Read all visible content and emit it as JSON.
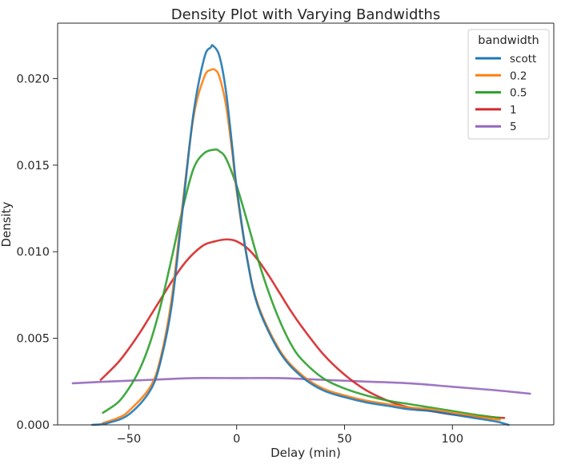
{
  "chart_data": {
    "type": "line",
    "title": "Density Plot with Varying Bandwidths",
    "xlabel": "Delay (min)",
    "ylabel": "Density",
    "xlim": [
      -83,
      147
    ],
    "ylim": [
      0,
      0.0232
    ],
    "xticks": [
      -50,
      0,
      50,
      100
    ],
    "yticks": [
      0.0,
      0.005,
      0.01,
      0.015,
      0.02
    ],
    "xtick_labels": [
      "−50",
      "0",
      "50",
      "100"
    ],
    "ytick_labels": [
      "0.000",
      "0.005",
      "0.010",
      "0.015",
      "0.020"
    ],
    "grid": false,
    "legend": {
      "title": "bandwidth",
      "position": "top-right"
    },
    "series": [
      {
        "name": "scott",
        "color": "#1f77b4",
        "x": [
          -67,
          -60,
          -50,
          -40,
          -35,
          -30,
          -25,
          -20,
          -15,
          -12,
          -11,
          -8,
          -5,
          -2,
          0,
          5,
          10,
          20,
          30,
          40,
          50,
          60,
          70,
          80,
          90,
          100,
          110,
          120,
          126
        ],
        "y": [
          0.0,
          0.0001,
          0.0006,
          0.002,
          0.0038,
          0.007,
          0.0125,
          0.018,
          0.0212,
          0.0218,
          0.0219,
          0.0213,
          0.0193,
          0.016,
          0.0137,
          0.0095,
          0.0068,
          0.0042,
          0.0028,
          0.002,
          0.0016,
          0.0013,
          0.0011,
          0.0009,
          0.0008,
          0.0006,
          0.0004,
          0.0002,
          0.0
        ]
      },
      {
        "name": "0.2",
        "color": "#ff7f0e",
        "x": [
          -62,
          -55,
          -50,
          -40,
          -35,
          -30,
          -25,
          -20,
          -15,
          -12,
          -10,
          -8,
          -5,
          -2,
          0,
          5,
          10,
          20,
          30,
          40,
          50,
          60,
          70,
          80,
          90,
          100,
          110,
          122
        ],
        "y": [
          0.0001,
          0.0004,
          0.0008,
          0.0022,
          0.004,
          0.0074,
          0.0128,
          0.0178,
          0.0201,
          0.0205,
          0.0205,
          0.0201,
          0.0185,
          0.0157,
          0.0135,
          0.0095,
          0.0069,
          0.0043,
          0.0029,
          0.0021,
          0.0017,
          0.0014,
          0.0012,
          0.001,
          0.0009,
          0.0007,
          0.0005,
          0.0003
        ]
      },
      {
        "name": "0.5",
        "color": "#2ca02c",
        "x": [
          -62,
          -55,
          -50,
          -45,
          -40,
          -35,
          -30,
          -25,
          -20,
          -15,
          -10,
          -8,
          -5,
          0,
          5,
          10,
          15,
          20,
          25,
          30,
          40,
          50,
          60,
          70,
          80,
          90,
          100,
          110,
          122
        ],
        "y": [
          0.0007,
          0.0013,
          0.0021,
          0.0032,
          0.0048,
          0.007,
          0.0097,
          0.0125,
          0.0148,
          0.0157,
          0.0159,
          0.0158,
          0.0154,
          0.0138,
          0.0117,
          0.0095,
          0.0076,
          0.006,
          0.0047,
          0.0038,
          0.0027,
          0.0021,
          0.0017,
          0.0014,
          0.0012,
          0.001,
          0.0008,
          0.0006,
          0.0004
        ]
      },
      {
        "name": "1",
        "color": "#d62728",
        "x": [
          -63,
          -55,
          -50,
          -45,
          -40,
          -35,
          -30,
          -25,
          -20,
          -15,
          -10,
          -6,
          -3,
          0,
          5,
          10,
          15,
          20,
          25,
          30,
          40,
          50,
          60,
          70,
          80,
          90,
          100,
          110,
          124
        ],
        "y": [
          0.0026,
          0.0036,
          0.0044,
          0.0053,
          0.0063,
          0.0073,
          0.0083,
          0.0092,
          0.0099,
          0.0104,
          0.0106,
          0.0107,
          0.0107,
          0.0106,
          0.0102,
          0.0095,
          0.0086,
          0.0076,
          0.0066,
          0.0057,
          0.0041,
          0.0029,
          0.002,
          0.0014,
          0.001,
          0.0008,
          0.0006,
          0.0005,
          0.0004
        ]
      },
      {
        "name": "5",
        "color": "#9467bd",
        "x": [
          -76,
          -60,
          -40,
          -20,
          0,
          20,
          40,
          60,
          80,
          100,
          120,
          136
        ],
        "y": [
          0.0024,
          0.0025,
          0.0026,
          0.0027,
          0.0027,
          0.0027,
          0.0026,
          0.0025,
          0.0024,
          0.0022,
          0.002,
          0.0018
        ]
      }
    ]
  }
}
